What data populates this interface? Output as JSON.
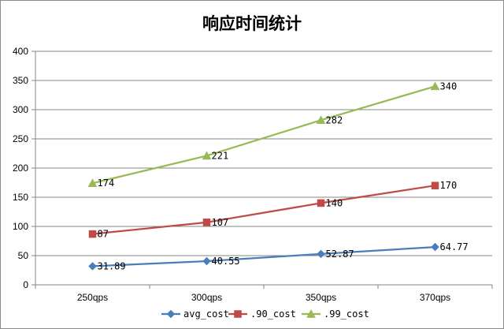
{
  "chart_data": {
    "type": "line",
    "title": "响应时间统计",
    "categories": [
      "250qps",
      "300qps",
      "350qps",
      "370qps"
    ],
    "ylim": [
      0,
      400
    ],
    "yticks": [
      0,
      50,
      100,
      150,
      200,
      250,
      300,
      350,
      400
    ],
    "grid": true,
    "legend": "bottom",
    "series": [
      {
        "name": "avg_cost",
        "values": [
          31.89,
          40.55,
          52.87,
          64.77
        ],
        "labels": [
          "31.89",
          "40.55",
          "52.87",
          "64.77"
        ],
        "color": "#4a7ebb",
        "marker": "diamond"
      },
      {
        "name": ".90_cost",
        "values": [
          87,
          107,
          140,
          170
        ],
        "labels": [
          "87",
          "107",
          "140",
          "170"
        ],
        "color": "#be4b48",
        "marker": "square"
      },
      {
        "name": ".99_cost",
        "values": [
          174,
          221,
          282,
          340
        ],
        "labels": [
          "174",
          "221",
          "282",
          "340"
        ],
        "color": "#98b954",
        "marker": "triangle"
      }
    ]
  }
}
